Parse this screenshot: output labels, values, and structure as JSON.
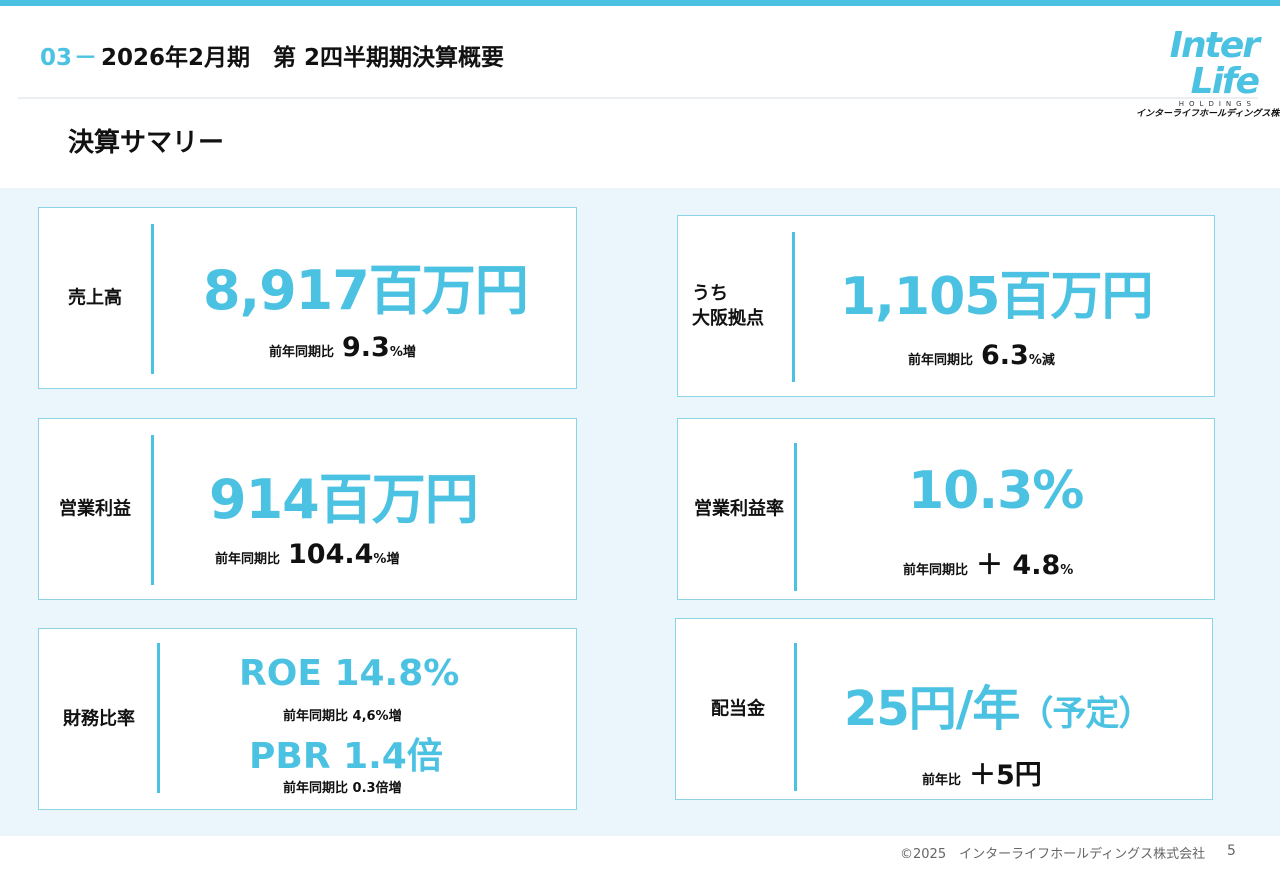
{
  "header": {
    "number": "03",
    "dash": "－",
    "title": "2026年2月期　第 2四半期期決算概要"
  },
  "logo": {
    "main": "Inter Life",
    "sub": "HOLDINGS",
    "kana": "インターライフホールディングス株式会社"
  },
  "section_title": "決算サマリー",
  "cards": {
    "sales": {
      "label": "売上高",
      "value": "8,917百万円",
      "compare_label": "前年同期比",
      "compare_value": "9.3",
      "compare_unit": "%増"
    },
    "osaka": {
      "label_line1": "うち",
      "label_line2": "大阪拠点",
      "value": "1,105百万円",
      "compare_label": "前年同期比",
      "compare_value": "6.3",
      "compare_unit": "%減"
    },
    "op_income": {
      "label": "営業利益",
      "value": "914百万円",
      "compare_label": "前年同期比",
      "compare_value": "104.4",
      "compare_unit": "%増"
    },
    "op_margin": {
      "label": "営業利益率",
      "value": "10.3%",
      "compare_label": "前年同期比",
      "compare_value": "＋ 4.8",
      "compare_unit": "%"
    },
    "financial": {
      "label": "財務比率",
      "roe": "ROE  14.8%",
      "roe_compare": "前年同期比  4,6%増",
      "pbr": "PBR  1.4倍",
      "pbr_compare": "前年同期比  0.3倍増"
    },
    "dividend": {
      "label": "配当金",
      "value_main": "25円/年",
      "value_note": "（予定）",
      "compare_label": "前年比",
      "compare_value": "＋5円"
    }
  },
  "footer": {
    "copyright": "©2025　インターライフホールディングス株式会社",
    "page": "5"
  }
}
